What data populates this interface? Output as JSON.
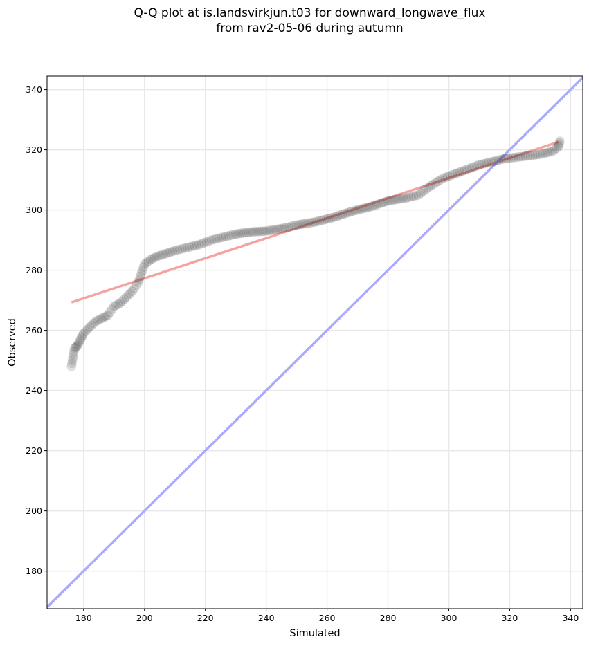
{
  "chart_data": {
    "type": "scatter",
    "title_line1": "Q-Q plot at is.landsvirkjun.t03 for downward_longwave_flux",
    "title_line2": "from rav2-05-06 during autumn",
    "xlabel": "Simulated",
    "ylabel": "Observed",
    "xlim": [
      168,
      344
    ],
    "ylim": [
      167.5,
      344.5
    ],
    "xticks": [
      180,
      200,
      220,
      240,
      260,
      280,
      300,
      320,
      340
    ],
    "yticks": [
      180,
      200,
      220,
      240,
      260,
      280,
      300,
      320,
      340
    ],
    "grid": true,
    "quantile_anchors": [
      [
        176,
        248
      ],
      [
        176.5,
        251
      ],
      [
        177,
        254
      ],
      [
        178,
        255
      ],
      [
        179,
        257
      ],
      [
        180,
        259
      ],
      [
        182,
        261
      ],
      [
        184,
        263
      ],
      [
        186,
        264
      ],
      [
        188,
        265
      ],
      [
        190,
        268
      ],
      [
        192,
        269
      ],
      [
        194,
        271
      ],
      [
        196,
        273
      ],
      [
        198,
        276
      ],
      [
        199,
        279
      ],
      [
        200,
        282
      ],
      [
        202,
        283.5
      ],
      [
        204,
        284.5
      ],
      [
        207,
        285.5
      ],
      [
        210,
        286.5
      ],
      [
        214,
        287.5
      ],
      [
        218,
        288.5
      ],
      [
        222,
        290
      ],
      [
        226,
        291
      ],
      [
        230,
        292
      ],
      [
        235,
        292.7
      ],
      [
        240,
        293
      ],
      [
        246,
        294
      ],
      [
        250,
        295
      ],
      [
        256,
        296
      ],
      [
        262,
        297.5
      ],
      [
        268,
        299.5
      ],
      [
        274,
        301
      ],
      [
        280,
        303
      ],
      [
        286,
        304
      ],
      [
        290,
        305
      ],
      [
        294,
        308
      ],
      [
        298,
        310.5
      ],
      [
        302,
        312
      ],
      [
        306,
        313.5
      ],
      [
        310,
        315
      ],
      [
        314,
        316
      ],
      [
        318,
        317
      ],
      [
        322,
        317.5
      ],
      [
        326,
        318
      ],
      [
        330,
        318.5
      ],
      [
        334,
        319.5
      ],
      [
        336,
        321
      ],
      [
        336.5,
        323
      ]
    ],
    "series": [
      {
        "kind": "fit_line",
        "color": "#f4a3a3",
        "x": [
          176,
          336
        ],
        "y": [
          269.3,
          322.6
        ]
      },
      {
        "kind": "one_to_one",
        "color": "#aaaaff",
        "x": [
          168,
          344
        ],
        "y": [
          168,
          344
        ]
      }
    ],
    "marker_color": "#222222"
  }
}
